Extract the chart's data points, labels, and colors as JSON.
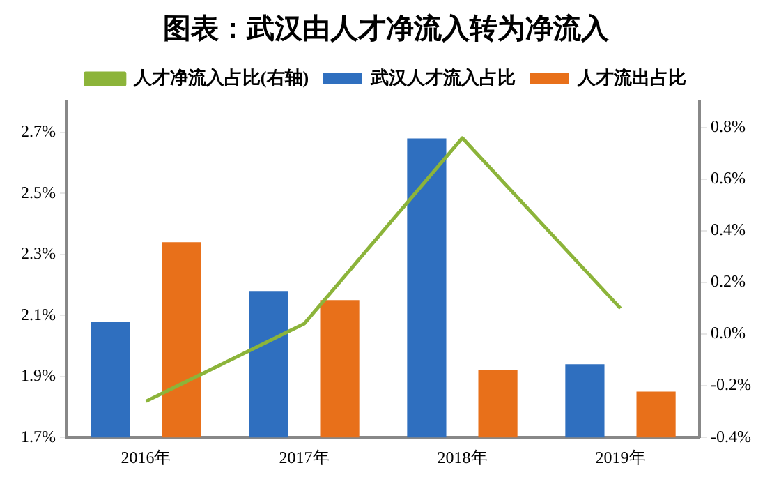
{
  "chart_data": {
    "type": "bar",
    "title": "图表：武汉由人才净流入转为净流入",
    "categories": [
      "2016年",
      "2017年",
      "2018年",
      "2019年"
    ],
    "series": [
      {
        "name": "武汉人才流入占比",
        "color": "#2f6fbf",
        "values": [
          2.08,
          2.18,
          2.68,
          1.94
        ]
      },
      {
        "name": "人才流出占比",
        "color": "#e8701a",
        "values": [
          2.34,
          2.15,
          1.92,
          1.85
        ]
      },
      {
        "name": "人才净流入占比(右轴)",
        "type": "line",
        "axis": "y2",
        "color": "#8cb43a",
        "values": [
          -0.26,
          0.04,
          0.76,
          0.1
        ]
      }
    ],
    "ylim": [
      1.7,
      2.8
    ],
    "yticks": [
      {
        "value": 1.7,
        "label": "1.7%"
      },
      {
        "value": 1.9,
        "label": "1.9%"
      },
      {
        "value": 2.1,
        "label": "2.1%"
      },
      {
        "value": 2.3,
        "label": "2.3%"
      },
      {
        "value": 2.5,
        "label": "2.5%"
      },
      {
        "value": 2.7,
        "label": "2.7%"
      }
    ],
    "y2lim": [
      -0.4,
      0.9
    ],
    "y2ticks": [
      {
        "value": -0.4,
        "label": "-0.4%"
      },
      {
        "value": -0.2,
        "label": "-0.2%"
      },
      {
        "value": 0,
        "label": "0.0%"
      },
      {
        "value": 0.2,
        "label": "0.2%"
      },
      {
        "value": 0.4,
        "label": "0.4%"
      },
      {
        "value": 0.6,
        "label": "0.6%"
      },
      {
        "value": 0.8,
        "label": "0.8%"
      }
    ],
    "grid": false,
    "legend": "top",
    "marker": "none",
    "line_style": "solid"
  }
}
